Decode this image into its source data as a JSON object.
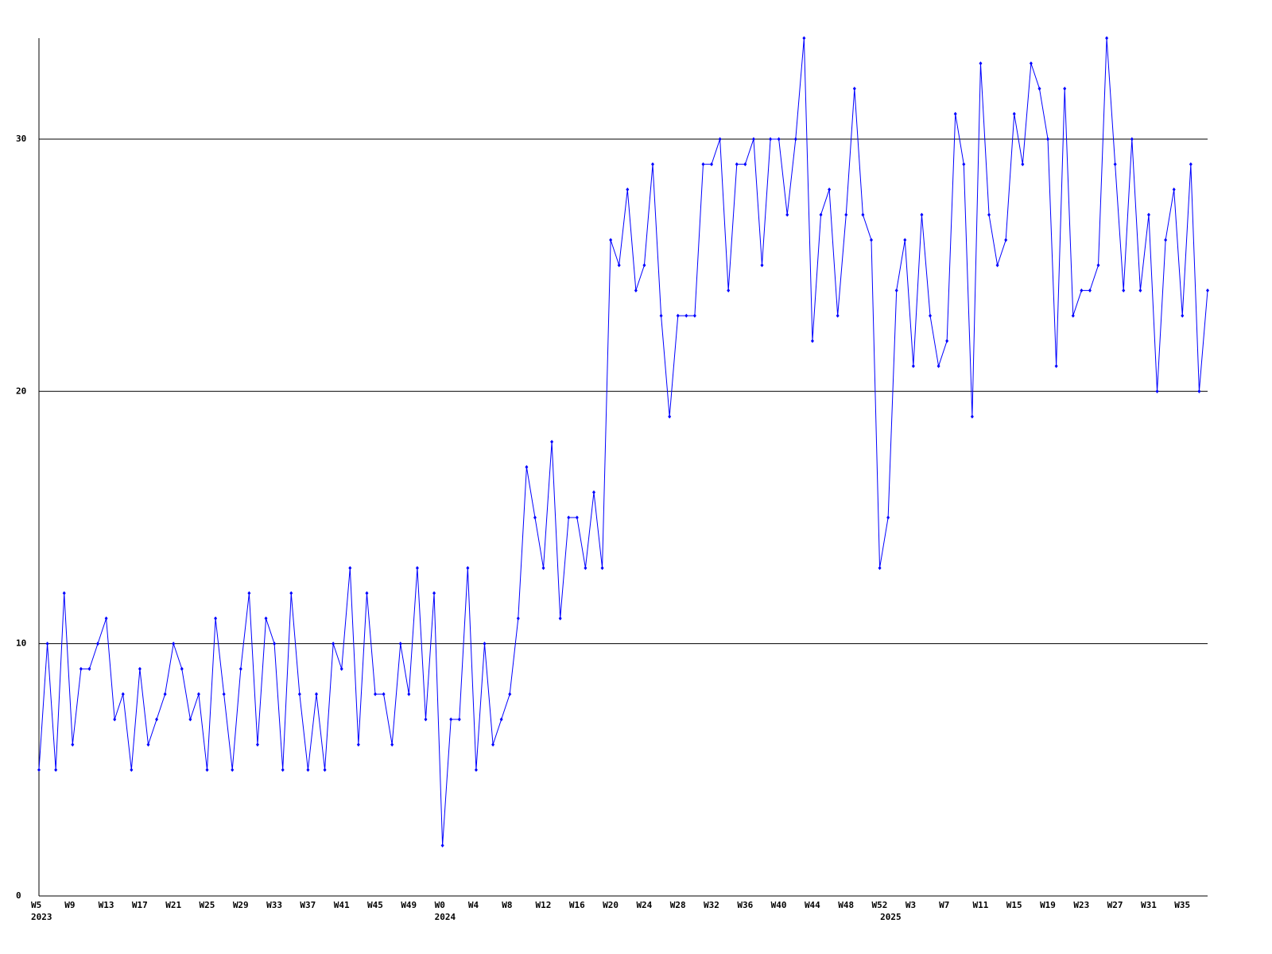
{
  "chart_data": {
    "type": "line",
    "color": "#0000ff",
    "categories": [
      "W5",
      null,
      null,
      null,
      "W9",
      null,
      null,
      null,
      "W13",
      null,
      null,
      null,
      "W17",
      null,
      null,
      null,
      "W21",
      null,
      null,
      null,
      "W25",
      null,
      null,
      null,
      "W29",
      null,
      null,
      null,
      "W33",
      null,
      null,
      null,
      "W37",
      null,
      null,
      null,
      "W41",
      null,
      null,
      null,
      "W45",
      null,
      null,
      null,
      "W49",
      null,
      null,
      null,
      "W0",
      null,
      null,
      null,
      "W4",
      null,
      null,
      null,
      "W8",
      null,
      null,
      null,
      "W12",
      null,
      null,
      null,
      "W16",
      null,
      null,
      null,
      "W20",
      null,
      null,
      null,
      "W24",
      null,
      null,
      null,
      "W28",
      null,
      null,
      null,
      "W32",
      null,
      null,
      null,
      "W36",
      null,
      null,
      null,
      "W40",
      null,
      null,
      null,
      "W44",
      null,
      null,
      null,
      "W48",
      null,
      null,
      null,
      "W52",
      null,
      null,
      null,
      "W3",
      null,
      null,
      null,
      "W7",
      null,
      null,
      null,
      "W11",
      null,
      null,
      null,
      "W15",
      null,
      null,
      null,
      "W19",
      null,
      null,
      null,
      "W23",
      null,
      null,
      null,
      "W27",
      null,
      null,
      null,
      "W31",
      null,
      null,
      null,
      "W35",
      null,
      null,
      null
    ],
    "years": [
      {
        "index": 0,
        "label": "2023"
      },
      {
        "index": 48,
        "label": "2024"
      },
      {
        "index": 101,
        "label": "2025"
      }
    ],
    "values": [
      5,
      10,
      5,
      12,
      6,
      9,
      9,
      10,
      11,
      7,
      8,
      5,
      9,
      6,
      7,
      8,
      10,
      9,
      7,
      8,
      5,
      11,
      8,
      5,
      9,
      12,
      6,
      11,
      10,
      5,
      12,
      8,
      5,
      8,
      5,
      10,
      9,
      13,
      6,
      12,
      8,
      8,
      6,
      10,
      8,
      13,
      7,
      12,
      2,
      7,
      7,
      13,
      5,
      10,
      6,
      7,
      8,
      11,
      17,
      15,
      13,
      18,
      11,
      15,
      15,
      13,
      16,
      13,
      26,
      25,
      28,
      24,
      25,
      29,
      23,
      19,
      23,
      23,
      23,
      29,
      29,
      30,
      24,
      29,
      29,
      30,
      25,
      30,
      30,
      27,
      30,
      34,
      22,
      27,
      28,
      23,
      27,
      32,
      27,
      26,
      13,
      15,
      24,
      26,
      21,
      27,
      23,
      21,
      22,
      31,
      29,
      19,
      33,
      27,
      25,
      26,
      31,
      29,
      33,
      32,
      30,
      21,
      32,
      23,
      24,
      24,
      25,
      34,
      29,
      24,
      30,
      24,
      27,
      20,
      26,
      28,
      23,
      29,
      20,
      24
    ],
    "ylim": [
      0,
      34
    ],
    "yticks": [
      0,
      10,
      20,
      30
    ],
    "grid": true
  }
}
